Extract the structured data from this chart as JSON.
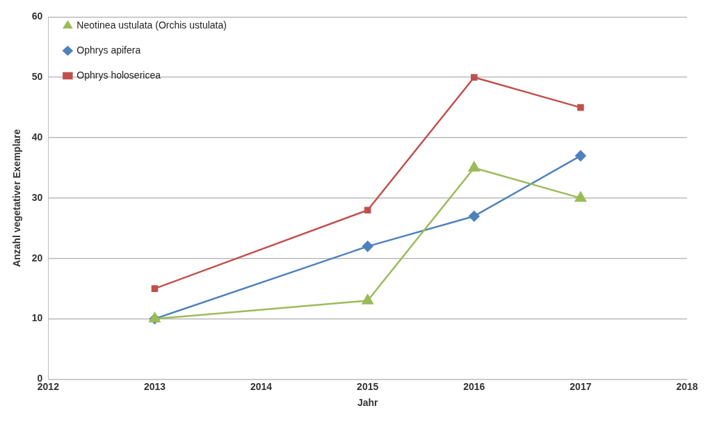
{
  "chart_data": {
    "type": "line",
    "xlabel": "Jahr",
    "ylabel": "Anzahl vegetativer Exemplare",
    "x": [
      2013,
      2015,
      2016,
      2017
    ],
    "xlim": [
      2012,
      2018
    ],
    "xticks": [
      2012,
      2013,
      2014,
      2015,
      2016,
      2017,
      2018
    ],
    "ylim": [
      0,
      60
    ],
    "yticks": [
      0,
      10,
      20,
      30,
      40,
      50,
      60
    ],
    "grid": "y",
    "legend": "top left",
    "series": [
      {
        "name": "Ophrys holosericea",
        "color": "#c0504d",
        "marker": "square",
        "values": [
          15,
          28,
          50,
          45
        ]
      },
      {
        "name": "Ophrys apifera",
        "color": "#4f81bd",
        "marker": "diamond",
        "values": [
          10,
          22,
          27,
          37
        ]
      },
      {
        "name": "Neotinea ustulata (Orchis ustulata)",
        "color": "#9bbb59",
        "marker": "triangle",
        "values": [
          10,
          13,
          35,
          30
        ]
      }
    ]
  }
}
